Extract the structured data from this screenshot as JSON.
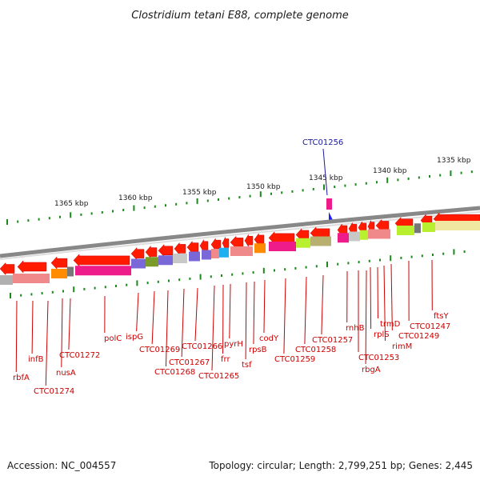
{
  "title": "Clostridium tetani E88, complete genome",
  "highlight_gene": "CTC01256",
  "scale_ticks": [
    "1365 kbp",
    "1360 kbp",
    "1355 kbp",
    "1350 kbp",
    "1345 kbp",
    "1340 kbp",
    "1335 kbp"
  ],
  "gene_labels": [
    "rbfA",
    "infB",
    "CTC01274",
    "nusA",
    "CTC01272",
    "polC",
    "ispG",
    "CTC01269",
    "CTC01268",
    "CTC01267",
    "CTC01266",
    "CTC01265",
    "frr",
    "pyrH",
    "tsf",
    "rpsB",
    "codY",
    "CTC01259",
    "CTC01258",
    "CTC01257",
    "rnhB",
    "CTC01253",
    "rbgA",
    "rplS",
    "trmD",
    "rimM",
    "CTC01249",
    "CTC01247",
    "ftsY"
  ],
  "footer": {
    "accession": "Accession: NC_004557",
    "summary": "Topology: circular; Length: 2,799,251 bp; Genes: 2,445"
  },
  "colors": {
    "gene_arrow": "#ff0000",
    "label": "#cc0000",
    "highlight": "#1a1aa0",
    "backbone": "#888888"
  }
}
